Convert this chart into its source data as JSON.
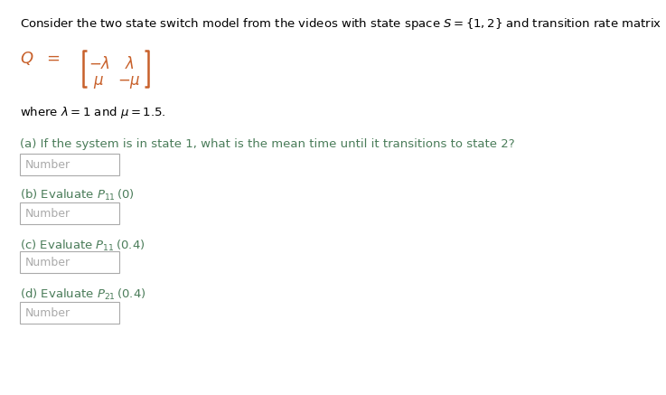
{
  "bg_color": "#ffffff",
  "text_color_black": "#000000",
  "text_color_green": "#4a7c59",
  "text_color_orange": "#c8602a",
  "header_text": "Consider the two state switch model from the videos with state space $S = \\{1,2\\}$ and transition rate matrix",
  "where_text": "where $\\lambda = 1$ and $\\mu = 1.5$.",
  "part_a_label": "(a) If the system is in state 1, what is the mean time until it transitions to state 2?",
  "part_b_label": "(b) Evaluate $P_{11}\\,(0)$",
  "part_c_label": "(c) Evaluate $P_{11}\\,(0.4)$",
  "part_d_label": "(d) Evaluate $P_{21}\\,(0.4)$",
  "number_placeholder": "Number",
  "box_facecolor": "#ffffff",
  "box_edgecolor": "#aaaaaa",
  "placeholder_color": "#aaaaaa"
}
